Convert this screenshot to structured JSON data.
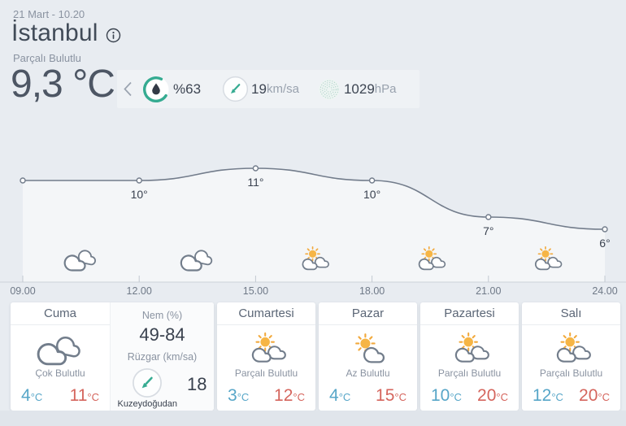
{
  "header": {
    "datetime": "21 Mart - 10.20",
    "city": "İstanbul",
    "condition": "Parçalı Bulutlu",
    "temperature": "9,3 °C",
    "stats": {
      "humidity": {
        "value": "%63"
      },
      "wind": {
        "value": "19",
        "unit": "km/sa"
      },
      "pressure": {
        "value": "1029",
        "unit": "hPa"
      }
    }
  },
  "chart_data": {
    "type": "line",
    "title": "",
    "xlabel": "",
    "ylabel": "",
    "unit": "°C",
    "x_labels": [
      "09.00",
      "12.00",
      "15.00",
      "18.00",
      "21.00",
      "24.00"
    ],
    "values": [
      10,
      10,
      11,
      10,
      7,
      6
    ],
    "point_labels": [
      "",
      "10°",
      "11°",
      "10°",
      "7°",
      "6°"
    ],
    "segment_icons": [
      "cloudy",
      "cloudy",
      "partly-sunny",
      "partly-sunny",
      "partly-sunny"
    ],
    "ylim": [
      3,
      13
    ],
    "grid": false,
    "legend": false
  },
  "details": {
    "humidity_label": "Nem (%)",
    "humidity_range": "49-84",
    "wind_label": "Rüzgar (km/sa)",
    "wind_value": "18",
    "wind_direction": "Kuzeydoğudan"
  },
  "labels": {
    "deg": "°C"
  },
  "forecast": [
    {
      "day": "Cuma",
      "condition": "Çok Bulutlu",
      "low": "4",
      "high": "11",
      "icon": "cloudy"
    },
    {
      "day": "Cumartesi",
      "condition": "Parçalı Bulutlu",
      "low": "3",
      "high": "12",
      "icon": "partly-sunny"
    },
    {
      "day": "Pazar",
      "condition": "Az Bulutlu",
      "low": "4",
      "high": "15",
      "icon": "mostly-sunny"
    },
    {
      "day": "Pazartesi",
      "condition": "Parçalı Bulutlu",
      "low": "10",
      "high": "20",
      "icon": "partly-sunny"
    },
    {
      "day": "Salı",
      "condition": "Parçalı Bulutlu",
      "low": "12",
      "high": "20",
      "icon": "partly-sunny"
    }
  ],
  "colors": {
    "accent_teal": "#35ab91",
    "sun": "#f3a93c",
    "temp_low": "#57a6c8",
    "temp_high": "#d5655d",
    "curve": "#727c8b",
    "background": "#e8ecf1"
  }
}
